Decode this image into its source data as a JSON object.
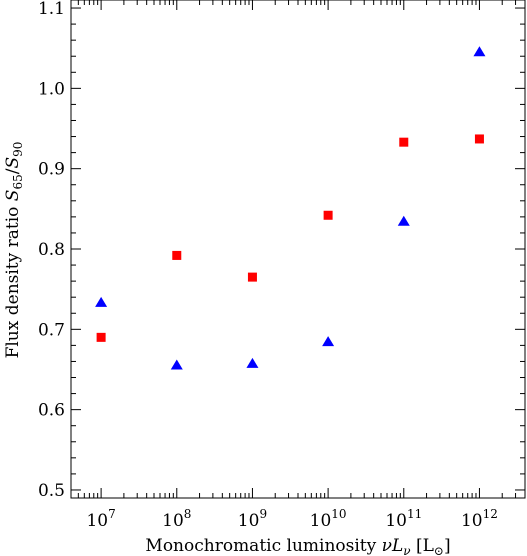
{
  "chart_data": {
    "type": "scatter",
    "title": "",
    "xlabel": {
      "text": "Monochromatic luminosity ",
      "symbol": "νL",
      "symbol_sub": "ν",
      "unit_open": " [L",
      "unit_sub": "⊙",
      "unit_close": "]"
    },
    "ylabel": {
      "text": "Flux density ratio ",
      "num": "S",
      "num_sub": "65",
      "slash": "/",
      "den": "S",
      "den_sub": "90"
    },
    "x_scale": "log",
    "xlim": [
      4000000,
      4000000000000
    ],
    "ylim": [
      0.49,
      1.11
    ],
    "grid": false,
    "legend": "none",
    "x_ticks": [
      {
        "value": 10000000,
        "base": "10",
        "exp": "7"
      },
      {
        "value": 100000000,
        "base": "10",
        "exp": "8"
      },
      {
        "value": 1000000000,
        "base": "10",
        "exp": "9"
      },
      {
        "value": 10000000000,
        "base": "10",
        "exp": "10"
      },
      {
        "value": 100000000000,
        "base": "10",
        "exp": "11"
      },
      {
        "value": 1000000000000,
        "base": "10",
        "exp": "12"
      }
    ],
    "y_ticks": [
      {
        "value": 0.5,
        "label": "0.5"
      },
      {
        "value": 0.6,
        "label": "0.6"
      },
      {
        "value": 0.7,
        "label": "0.7"
      },
      {
        "value": 0.8,
        "label": "0.8"
      },
      {
        "value": 0.9,
        "label": "0.9"
      },
      {
        "value": 1.0,
        "label": "1.0"
      },
      {
        "value": 1.1,
        "label": "1.1"
      }
    ],
    "series": [
      {
        "marker": "square",
        "color": "#ff0000",
        "x": [
          10000000,
          100000000,
          1000000000,
          10000000000,
          100000000000,
          1000000000000
        ],
        "y": [
          0.69,
          0.792,
          0.765,
          0.842,
          0.933,
          0.937
        ]
      },
      {
        "marker": "triangle",
        "color": "#0000ff",
        "x": [
          10000000,
          100000000,
          1000000000,
          10000000000,
          100000000000,
          1000000000000
        ],
        "y": [
          0.733,
          0.655,
          0.657,
          0.684,
          0.834,
          1.045
        ]
      }
    ]
  }
}
